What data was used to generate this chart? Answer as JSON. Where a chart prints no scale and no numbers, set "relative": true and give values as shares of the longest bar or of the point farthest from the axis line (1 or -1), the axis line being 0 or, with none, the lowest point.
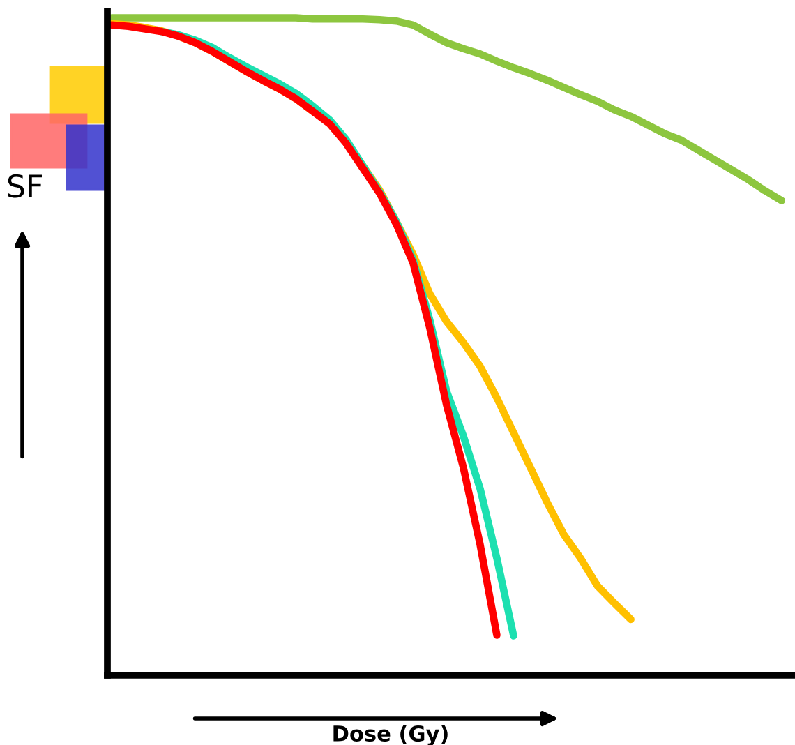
{
  "chart_data": {
    "type": "line",
    "relative": true,
    "xlabel": "Dose (Gy)",
    "ylabel": "SF",
    "legend": false,
    "grid": false,
    "marker": "none",
    "line_style": "solid",
    "categories": [
      null,
      null,
      null,
      null,
      null,
      null,
      null,
      null,
      null,
      null,
      null,
      null,
      null,
      null,
      null,
      null,
      null,
      null,
      null,
      null,
      null,
      null,
      null,
      null,
      null,
      null,
      null,
      null,
      null,
      null,
      null,
      null,
      null,
      null,
      null,
      null,
      null,
      null,
      null,
      null,
      null
    ],
    "series": [
      {
        "color": "#8dc63f",
        "values": [
          1.0,
          1.0,
          1.0,
          1.0,
          1.0,
          1.0,
          1.0,
          1.0,
          1.0,
          1.0,
          1.0,
          1.0,
          0.998,
          0.998,
          0.998,
          0.998,
          0.997,
          0.995,
          0.989,
          0.975,
          0.962,
          0.953,
          0.945,
          0.934,
          0.924,
          0.915,
          0.905,
          0.894,
          0.883,
          0.873,
          0.86,
          0.85,
          0.837,
          0.824,
          0.814,
          0.799,
          0.784,
          0.769,
          0.754,
          0.737,
          0.722
        ]
      },
      {
        "color": "#ffc000",
        "values": [
          0.991,
          0.989,
          0.985,
          0.98,
          0.972,
          0.962,
          0.949,
          0.934,
          0.919,
          0.905,
          0.892,
          0.877,
          0.858,
          0.84,
          0.812,
          0.775,
          0.738,
          0.69,
          0.64,
          0.58,
          0.538,
          0.506,
          0.47,
          0.422,
          0.369,
          0.316,
          0.263,
          0.214,
          0.178,
          0.136,
          0.11,
          0.085,
          null,
          null,
          null,
          null,
          null,
          null,
          null,
          null,
          null
        ]
      },
      {
        "color": "#1de0b0",
        "values": [
          null,
          null,
          null,
          0.979,
          0.974,
          0.966,
          0.955,
          0.94,
          0.926,
          0.913,
          0.9,
          0.885,
          0.866,
          0.845,
          0.815,
          0.775,
          0.735,
          0.69,
          0.632,
          0.54,
          0.432,
          0.364,
          0.284,
          0.178,
          0.06,
          null,
          null,
          null,
          null,
          null,
          null,
          null,
          null,
          null,
          null,
          null,
          null,
          null,
          null,
          null,
          null
        ]
      },
      {
        "color": "#ff0000",
        "values": [
          0.989,
          0.987,
          0.983,
          0.979,
          0.972,
          0.962,
          0.949,
          0.934,
          0.919,
          0.905,
          0.892,
          0.877,
          0.858,
          0.839,
          0.809,
          0.771,
          0.733,
          0.686,
          0.627,
          0.528,
          0.411,
          0.316,
          0.199,
          0.061,
          null,
          null,
          null,
          null,
          null,
          null,
          null,
          null,
          null,
          null,
          null,
          null,
          null,
          null,
          null,
          null,
          null
        ]
      }
    ]
  }
}
